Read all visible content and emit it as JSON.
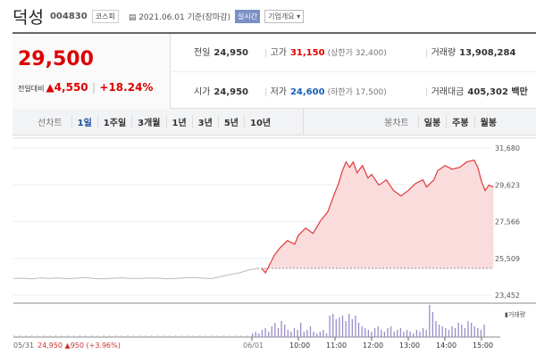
{
  "header": {
    "name": "덕성",
    "code": "004830",
    "market": "코스피",
    "date": "2021.06.01 기준(장마감)",
    "realtime": "실시간",
    "company": "기업개요 ▾"
  },
  "summary": {
    "price": "29,500",
    "change_label": "전일대비",
    "change": "▲4,550",
    "rate": "+18.24%",
    "prev_label": "전일",
    "prev": "24,950",
    "open_label": "시가",
    "open": "24,950",
    "high_label": "고가",
    "high": "31,150",
    "upper": "(상한가 32,400)",
    "low_label": "저가",
    "low": "24,600",
    "lower": "(하한가 17,500)",
    "vol_label": "거래량",
    "vol": "13,908,284",
    "amt_label": "거래대금",
    "amt": "405,302 백만"
  },
  "tabs": {
    "line_label": "선차트",
    "line": [
      "1일",
      "1주일",
      "3개월",
      "1년",
      "3년",
      "5년",
      "10년"
    ],
    "candle_label": "봉차트",
    "candle": [
      "일봉",
      "주봉",
      "월봉"
    ]
  },
  "chart_data": {
    "type": "line",
    "ylim": [
      23452,
      31680
    ],
    "yticks": [
      "31,680",
      "29,623",
      "27,566",
      "25,509",
      "23,452"
    ],
    "prev_close": 24950,
    "xticks": [
      "06/01",
      "10:00",
      "11:00",
      "12:00",
      "13:00",
      "14:00",
      "15:00"
    ],
    "prev_day": {
      "label": "05/31",
      "close_text": "24,950",
      "change_text": "▲950 (+3.96%)",
      "prices": [
        24380,
        24400,
        24360,
        24420,
        24390,
        24410,
        24370,
        24400,
        24430,
        24380,
        24360,
        24400,
        24420,
        24390,
        24380,
        24410,
        24400,
        24370,
        24390,
        24420,
        24440,
        24400,
        24380,
        24500,
        24600,
        24700,
        24850,
        24950
      ]
    },
    "today": [
      [
        9.0,
        24950
      ],
      [
        9.1,
        24700
      ],
      [
        9.2,
        25100
      ],
      [
        9.35,
        25700
      ],
      [
        9.5,
        26100
      ],
      [
        9.7,
        26500
      ],
      [
        9.9,
        26300
      ],
      [
        10.0,
        26800
      ],
      [
        10.2,
        27200
      ],
      [
        10.4,
        26900
      ],
      [
        10.6,
        27600
      ],
      [
        10.8,
        28100
      ],
      [
        11.0,
        29200
      ],
      [
        11.1,
        29700
      ],
      [
        11.2,
        30400
      ],
      [
        11.3,
        30900
      ],
      [
        11.4,
        30600
      ],
      [
        11.5,
        30900
      ],
      [
        11.6,
        30300
      ],
      [
        11.75,
        30700
      ],
      [
        11.9,
        30000
      ],
      [
        12.0,
        30200
      ],
      [
        12.2,
        29600
      ],
      [
        12.4,
        29900
      ],
      [
        12.6,
        29300
      ],
      [
        12.8,
        29000
      ],
      [
        13.0,
        29300
      ],
      [
        13.2,
        29700
      ],
      [
        13.4,
        29900
      ],
      [
        13.5,
        29500
      ],
      [
        13.7,
        29900
      ],
      [
        13.8,
        30400
      ],
      [
        14.0,
        30700
      ],
      [
        14.2,
        30500
      ],
      [
        14.4,
        30600
      ],
      [
        14.6,
        30900
      ],
      [
        14.8,
        31000
      ],
      [
        14.9,
        30600
      ],
      [
        15.0,
        29800
      ],
      [
        15.1,
        29300
      ],
      [
        15.2,
        29600
      ],
      [
        15.33,
        29500
      ]
    ],
    "volume_label": "거래량",
    "volume": [
      2,
      3,
      2,
      4,
      5,
      3,
      6,
      8,
      5,
      9,
      7,
      4,
      3,
      5,
      4,
      8,
      3,
      4,
      6,
      3,
      2,
      3,
      4,
      2,
      12,
      13,
      10,
      11,
      12,
      9,
      13,
      10,
      12,
      8,
      6,
      5,
      4,
      3,
      5,
      6,
      4,
      3,
      5,
      6,
      3,
      4,
      5,
      3,
      4,
      3,
      2,
      4,
      3,
      5,
      4,
      18,
      14,
      9,
      7,
      6,
      5,
      4,
      6,
      5,
      8,
      7,
      5,
      9,
      8,
      6,
      5,
      4,
      7
    ]
  }
}
